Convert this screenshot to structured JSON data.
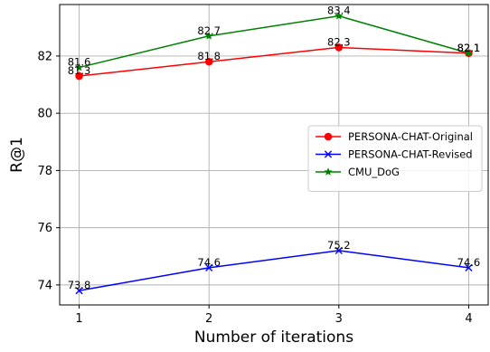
{
  "chart_data": {
    "type": "line",
    "title": "",
    "xlabel": "Number of iterations",
    "ylabel": "R@1",
    "x": [
      1,
      2,
      3,
      4
    ],
    "xlim": [
      0.85,
      4.15
    ],
    "ylim": [
      73.3,
      83.8
    ],
    "xticks": [
      1,
      2,
      3,
      4
    ],
    "yticks": [
      74,
      76,
      78,
      80,
      82
    ],
    "grid": true,
    "legend_position": "center-right",
    "series": [
      {
        "name": "PERSONA-CHAT-Original",
        "values": [
          81.3,
          81.8,
          82.3,
          82.1
        ],
        "labels": [
          "81.3",
          "81.8",
          "82.3",
          "82.1"
        ],
        "color": "#ff0000",
        "marker": "circle"
      },
      {
        "name": "PERSONA-CHAT-Revised",
        "values": [
          73.8,
          74.6,
          75.2,
          74.6
        ],
        "labels": [
          "73.8",
          "74.6",
          "75.2",
          "74.6"
        ],
        "color": "#0000ff",
        "marker": "x"
      },
      {
        "name": "CMU_DoG",
        "values": [
          81.6,
          82.7,
          83.4,
          82.1
        ],
        "labels": [
          "81.6",
          "82.7",
          "83.4",
          "82.1"
        ],
        "color": "#008000",
        "marker": "star"
      }
    ]
  }
}
